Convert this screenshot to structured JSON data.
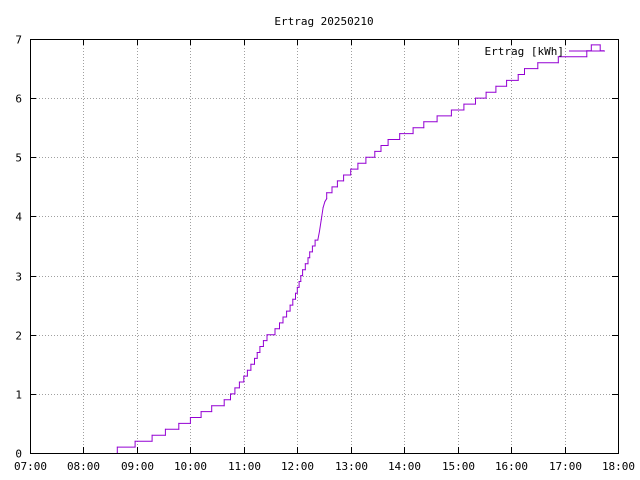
{
  "chart_data": {
    "type": "line",
    "title": "Ertrag 20250210",
    "xlabel": "",
    "ylabel": "",
    "x_ticks": [
      "07:00",
      "08:00",
      "09:00",
      "10:00",
      "11:00",
      "12:00",
      "13:00",
      "14:00",
      "15:00",
      "16:00",
      "17:00",
      "18:00"
    ],
    "y_ticks": [
      "0",
      "1",
      "2",
      "3",
      "4",
      "5",
      "6",
      "7"
    ],
    "xlim": [
      "07:00",
      "18:00"
    ],
    "ylim": [
      0,
      7
    ],
    "grid": true,
    "legend_position": "top-right",
    "series": [
      {
        "name": "Ertrag [kWh]",
        "color": "#9400d3",
        "step": true,
        "points": [
          [
            "08:38",
            0.0
          ],
          [
            "08:38",
            0.1
          ],
          [
            "08:58",
            0.1
          ],
          [
            "08:58",
            0.2
          ],
          [
            "09:17",
            0.2
          ],
          [
            "09:17",
            0.3
          ],
          [
            "09:32",
            0.3
          ],
          [
            "09:32",
            0.4
          ],
          [
            "09:47",
            0.4
          ],
          [
            "09:47",
            0.5
          ],
          [
            "10:00",
            0.5
          ],
          [
            "10:00",
            0.6
          ],
          [
            "10:12",
            0.6
          ],
          [
            "10:12",
            0.7
          ],
          [
            "10:24",
            0.7
          ],
          [
            "10:24",
            0.8
          ],
          [
            "10:38",
            0.8
          ],
          [
            "10:38",
            0.9
          ],
          [
            "10:45",
            0.9
          ],
          [
            "10:45",
            1.0
          ],
          [
            "10:50",
            1.0
          ],
          [
            "10:50",
            1.1
          ],
          [
            "10:55",
            1.1
          ],
          [
            "10:55",
            1.2
          ],
          [
            "11:00",
            1.2
          ],
          [
            "11:00",
            1.3
          ],
          [
            "11:04",
            1.3
          ],
          [
            "11:04",
            1.4
          ],
          [
            "11:08",
            1.4
          ],
          [
            "11:08",
            1.5
          ],
          [
            "11:12",
            1.5
          ],
          [
            "11:12",
            1.6
          ],
          [
            "11:15",
            1.6
          ],
          [
            "11:15",
            1.7
          ],
          [
            "11:18",
            1.7
          ],
          [
            "11:18",
            1.8
          ],
          [
            "11:22",
            1.8
          ],
          [
            "11:22",
            1.9
          ],
          [
            "11:26",
            1.9
          ],
          [
            "11:26",
            2.0
          ],
          [
            "11:35",
            2.0
          ],
          [
            "11:35",
            2.1
          ],
          [
            "11:40",
            2.1
          ],
          [
            "11:40",
            2.2
          ],
          [
            "11:44",
            2.2
          ],
          [
            "11:44",
            2.3
          ],
          [
            "11:48",
            2.3
          ],
          [
            "11:48",
            2.4
          ],
          [
            "11:52",
            2.4
          ],
          [
            "11:52",
            2.5
          ],
          [
            "11:55",
            2.5
          ],
          [
            "11:55",
            2.6
          ],
          [
            "11:58",
            2.6
          ],
          [
            "11:58",
            2.7
          ],
          [
            "12:00",
            2.7
          ],
          [
            "12:00",
            2.8
          ],
          [
            "12:02",
            2.8
          ],
          [
            "12:02",
            2.9
          ],
          [
            "12:04",
            2.9
          ],
          [
            "12:04",
            3.0
          ],
          [
            "12:06",
            3.0
          ],
          [
            "12:06",
            3.1
          ],
          [
            "12:09",
            3.1
          ],
          [
            "12:09",
            3.2
          ],
          [
            "12:12",
            3.2
          ],
          [
            "12:12",
            3.3
          ],
          [
            "12:14",
            3.3
          ],
          [
            "12:14",
            3.4
          ],
          [
            "12:17",
            3.4
          ],
          [
            "12:17",
            3.5
          ],
          [
            "12:20",
            3.5
          ],
          [
            "12:20",
            3.6
          ],
          [
            "12:23",
            3.6
          ],
          [
            "12:25",
            3.75
          ],
          [
            "12:27",
            3.95
          ],
          [
            "12:29",
            4.15
          ],
          [
            "12:31",
            4.25
          ],
          [
            "12:33",
            4.3
          ],
          [
            "12:33",
            4.4
          ],
          [
            "12:39",
            4.4
          ],
          [
            "12:39",
            4.5
          ],
          [
            "12:45",
            4.5
          ],
          [
            "12:45",
            4.6
          ],
          [
            "12:52",
            4.6
          ],
          [
            "12:52",
            4.7
          ],
          [
            "13:00",
            4.7
          ],
          [
            "13:00",
            4.8
          ],
          [
            "13:08",
            4.8
          ],
          [
            "13:08",
            4.9
          ],
          [
            "13:17",
            4.9
          ],
          [
            "13:17",
            5.0
          ],
          [
            "13:27",
            5.0
          ],
          [
            "13:27",
            5.1
          ],
          [
            "13:34",
            5.1
          ],
          [
            "13:34",
            5.2
          ],
          [
            "13:42",
            5.2
          ],
          [
            "13:42",
            5.3
          ],
          [
            "13:55",
            5.3
          ],
          [
            "13:55",
            5.4
          ],
          [
            "14:10",
            5.4
          ],
          [
            "14:10",
            5.5
          ],
          [
            "14:22",
            5.5
          ],
          [
            "14:22",
            5.6
          ],
          [
            "14:37",
            5.6
          ],
          [
            "14:37",
            5.7
          ],
          [
            "14:53",
            5.7
          ],
          [
            "14:53",
            5.8
          ],
          [
            "15:07",
            5.8
          ],
          [
            "15:07",
            5.9
          ],
          [
            "15:20",
            5.9
          ],
          [
            "15:20",
            6.0
          ],
          [
            "15:32",
            6.0
          ],
          [
            "15:32",
            6.1
          ],
          [
            "15:43",
            6.1
          ],
          [
            "15:43",
            6.2
          ],
          [
            "15:55",
            6.2
          ],
          [
            "15:55",
            6.3
          ],
          [
            "16:08",
            6.3
          ],
          [
            "16:08",
            6.4
          ],
          [
            "16:15",
            6.4
          ],
          [
            "16:15",
            6.5
          ],
          [
            "16:30",
            6.5
          ],
          [
            "16:30",
            6.6
          ],
          [
            "16:53",
            6.6
          ],
          [
            "16:53",
            6.7
          ],
          [
            "17:25",
            6.7
          ],
          [
            "17:25",
            6.8
          ],
          [
            "17:30",
            6.8
          ],
          [
            "17:30",
            6.9
          ],
          [
            "17:40",
            6.9
          ],
          [
            "17:40",
            6.8
          ],
          [
            "17:44",
            6.8
          ]
        ]
      }
    ]
  }
}
